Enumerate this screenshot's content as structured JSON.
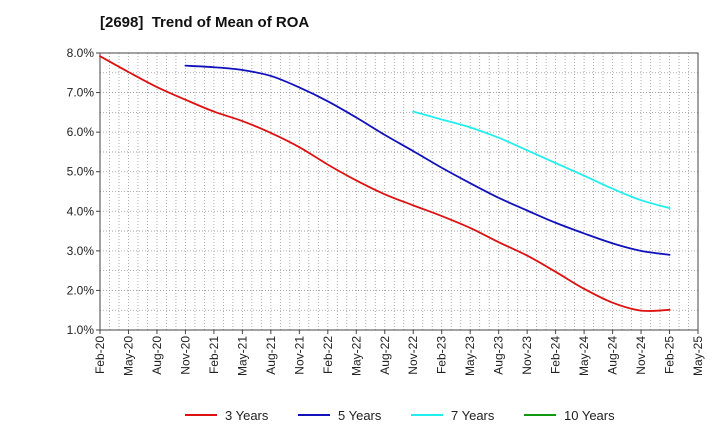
{
  "chart_data": {
    "type": "line",
    "title": "[2698]  Trend of Mean of ROA",
    "xlabel": "",
    "ylabel": "",
    "ylim": [
      1.0,
      8.0
    ],
    "yticks": [
      1.0,
      2.0,
      3.0,
      4.0,
      5.0,
      6.0,
      7.0,
      8.0
    ],
    "ytick_labels": [
      "1.0%",
      "2.0%",
      "3.0%",
      "4.0%",
      "5.0%",
      "6.0%",
      "7.0%",
      "8.0%"
    ],
    "categories": [
      "Feb-20",
      "May-20",
      "Aug-20",
      "Nov-20",
      "Feb-21",
      "May-21",
      "Aug-21",
      "Nov-21",
      "Feb-22",
      "May-22",
      "Aug-22",
      "Nov-22",
      "Feb-23",
      "May-23",
      "Aug-23",
      "Nov-23",
      "Feb-24",
      "May-24",
      "Aug-24",
      "Nov-24",
      "Feb-25",
      "May-25"
    ],
    "grid": true,
    "legend_position": "bottom",
    "series": [
      {
        "name": "3 Years",
        "color": "#dd1111",
        "values": [
          7.92,
          7.52,
          7.14,
          6.82,
          6.52,
          6.28,
          5.98,
          5.62,
          5.18,
          4.78,
          4.43,
          4.15,
          3.88,
          3.58,
          3.22,
          2.88,
          2.47,
          2.04,
          1.69,
          1.49,
          1.51,
          null
        ]
      },
      {
        "name": "5 Years",
        "color": "#1111bb",
        "values": [
          null,
          null,
          null,
          7.68,
          7.64,
          7.57,
          7.42,
          7.13,
          6.78,
          6.37,
          5.93,
          5.52,
          5.1,
          4.71,
          4.34,
          4.02,
          3.71,
          3.44,
          3.19,
          3.0,
          2.9,
          null
        ]
      },
      {
        "name": "7 Years",
        "color": "#22eeee",
        "values": [
          null,
          null,
          null,
          null,
          null,
          null,
          null,
          null,
          null,
          null,
          null,
          6.52,
          6.32,
          6.12,
          5.86,
          5.54,
          5.22,
          4.9,
          4.57,
          4.28,
          4.08,
          null
        ]
      },
      {
        "name": "10 Years",
        "color": "#119911",
        "values": [
          null,
          null,
          null,
          null,
          null,
          null,
          null,
          null,
          null,
          null,
          null,
          null,
          null,
          null,
          null,
          null,
          null,
          null,
          null,
          null,
          null,
          null
        ]
      }
    ]
  }
}
